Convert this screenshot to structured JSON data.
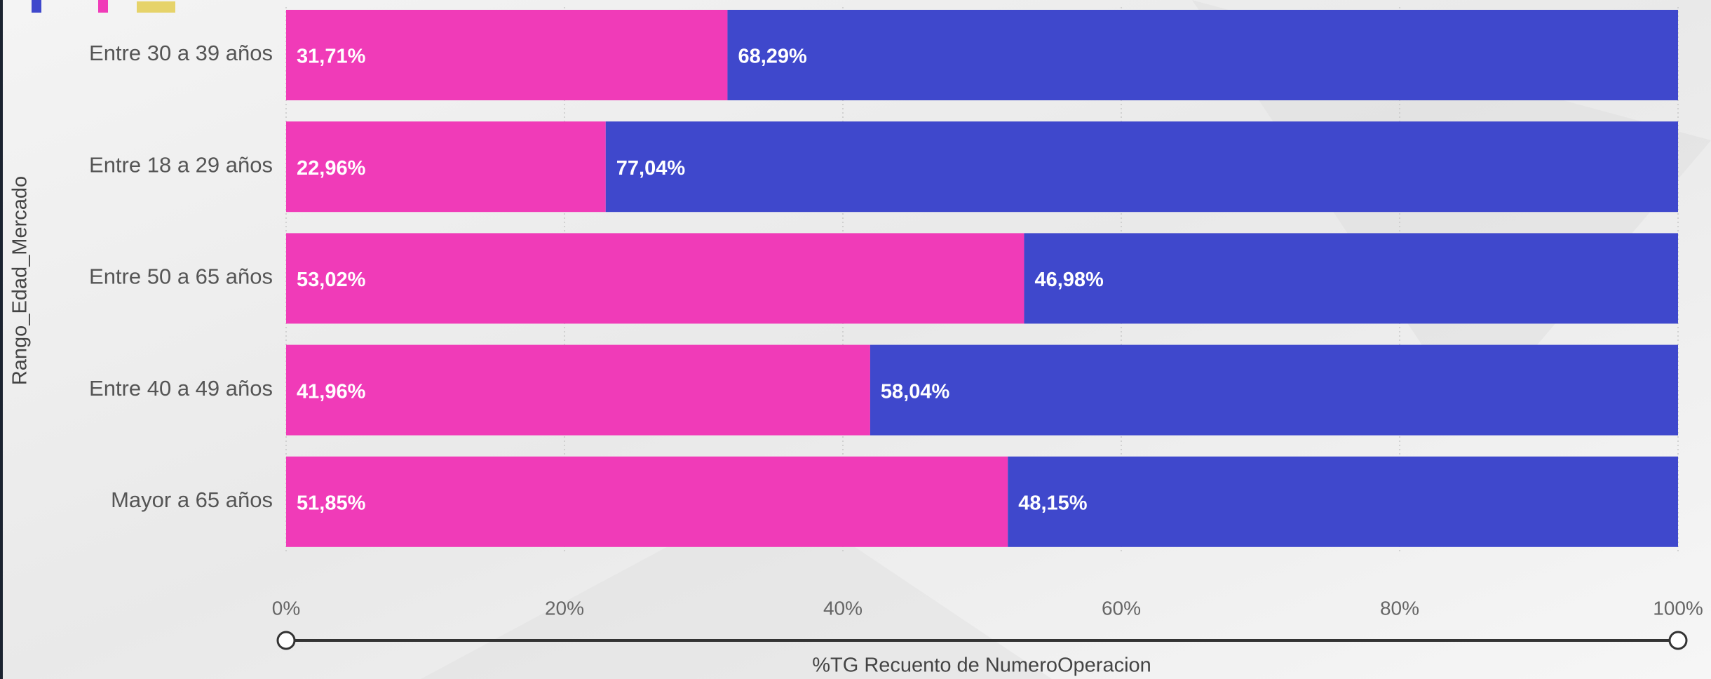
{
  "chart_data": {
    "type": "bar100h",
    "xlabel": "%TG Recuento de NumeroOperacion",
    "ylabel": "Rango_Edad_Mercado",
    "categories": [
      "Entre 30 a 39 años",
      "Entre 18 a 29 años",
      "Entre 50 a 65 años",
      "Entre 40 a 49 años",
      "Mayor a 65 años"
    ],
    "series": [
      {
        "color": "#f03bb8",
        "values": [
          31.71,
          22.96,
          53.02,
          41.96,
          51.85
        ],
        "value_labels": [
          "31,71%",
          "22,96%",
          "53,02%",
          "41,96%",
          "51,85%"
        ]
      },
      {
        "color": "#3f48cc",
        "values": [
          68.29,
          77.04,
          46.98,
          58.04,
          48.15
        ],
        "value_labels": [
          "68,29%",
          "77,04%",
          "46,98%",
          "58,04%",
          "48,15%"
        ]
      }
    ],
    "xlim": [
      0,
      100
    ],
    "xticks": [
      {
        "value": 0,
        "label": "0%"
      },
      {
        "value": 20,
        "label": "20%"
      },
      {
        "value": 40,
        "label": "40%"
      },
      {
        "value": 60,
        "label": "60%"
      },
      {
        "value": 80,
        "label": "80%"
      },
      {
        "value": 100,
        "label": "100%"
      }
    ],
    "grid": true
  }
}
